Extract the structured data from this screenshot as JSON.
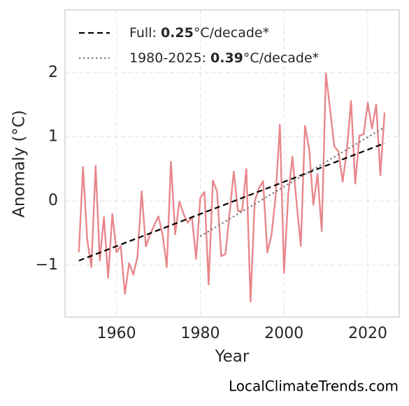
{
  "chart_data": {
    "type": "line",
    "xlabel": "Year",
    "ylabel": "Anomaly (°C)",
    "source": "LocalClimateTrends.com",
    "xlim": [
      1947.7,
      2027.5
    ],
    "ylim": [
      -1.81,
      2.98
    ],
    "xticks": [
      1960,
      1980,
      2000,
      2020
    ],
    "yticks": [
      {
        "value": -1,
        "label": "−1"
      },
      0,
      1,
      2
    ],
    "grid": true,
    "legend_position": "upper left",
    "series": [
      {
        "color": "#e8878b",
        "x": [
          1951,
          1952,
          1953,
          1954,
          1955,
          1956,
          1957,
          1958,
          1959,
          1960,
          1961,
          1962,
          1963,
          1964,
          1965,
          1966,
          1967,
          1968,
          1969,
          1970,
          1971,
          1972,
          1973,
          1974,
          1975,
          1976,
          1977,
          1978,
          1979,
          1980,
          1981,
          1982,
          1983,
          1984,
          1985,
          1986,
          1987,
          1988,
          1989,
          1990,
          1991,
          1992,
          1993,
          1994,
          1995,
          1996,
          1997,
          1998,
          1999,
          2000,
          2001,
          2002,
          2003,
          2004,
          2005,
          2006,
          2007,
          2008,
          2009,
          2010,
          2011,
          2012,
          2013,
          2014,
          2015,
          2016,
          2017,
          2018,
          2019,
          2020,
          2021,
          2022,
          2023,
          2024
        ],
        "values": [
          -0.8,
          0.53,
          -0.6,
          -1.03,
          0.55,
          -0.93,
          -0.25,
          -1.2,
          -0.2,
          -0.8,
          -0.7,
          -1.45,
          -0.97,
          -1.15,
          -0.87,
          0.15,
          -0.71,
          -0.52,
          -0.38,
          -0.24,
          -0.52,
          -1.03,
          0.61,
          -0.52,
          -0.01,
          -0.2,
          -0.34,
          -0.25,
          -0.9,
          0.05,
          0.14,
          -1.3,
          0.32,
          0.15,
          -0.86,
          -0.83,
          -0.19,
          0.46,
          -0.16,
          -0.15,
          0.5,
          -1.57,
          0,
          0.2,
          0.31,
          -0.8,
          -0.53,
          0.08,
          1.19,
          -1.12,
          0.1,
          0.69,
          -0.03,
          -0.7,
          1.17,
          0.81,
          -0.06,
          0.42,
          -0.47,
          1.99,
          1.42,
          0.85,
          0.77,
          0.3,
          0.79,
          1.56,
          0.27,
          1.02,
          1.04,
          1.53,
          1.13,
          1.5,
          0.4,
          1.38
        ]
      }
    ],
    "trends": [
      {
        "prefix": "Full: ",
        "rate": 0.25,
        "suffix": "°C/decade*",
        "color": "#000000",
        "style": "dashed",
        "x": [
          1951,
          2024
        ],
        "values": [
          -0.93,
          0.9
        ]
      },
      {
        "prefix": "1980-2025: ",
        "rate": 0.39,
        "suffix": "°C/decade*",
        "color": "#808080",
        "style": "dotted",
        "x": [
          1980,
          2024
        ],
        "values": [
          -0.55,
          1.15
        ]
      }
    ]
  }
}
